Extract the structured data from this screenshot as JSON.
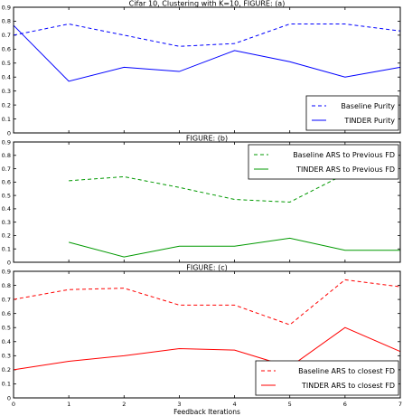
{
  "chart_data": [
    {
      "type": "line",
      "title": "Cifar 10, Clustering with K=10, FIGURE: (a)",
      "x": [
        0,
        1,
        2,
        3,
        4,
        5,
        6,
        7
      ],
      "ylim": [
        0,
        0.9
      ],
      "yticks": [
        "0",
        "0.1",
        "0.2",
        "0.3",
        "0.4",
        "0.5",
        "0.6",
        "0.7",
        "0.8",
        "0.9"
      ],
      "legend_position": "bottom-right",
      "series": [
        {
          "name": "Baseline Purity",
          "color": "#0000ff",
          "style": "dashed",
          "values": [
            0.7,
            0.78,
            0.7,
            0.62,
            0.64,
            0.78,
            0.78,
            0.73
          ]
        },
        {
          "name": "TINDER Purity",
          "color": "#0000ff",
          "style": "solid",
          "values": [
            0.77,
            0.37,
            0.47,
            0.44,
            0.59,
            0.51,
            0.4,
            0.47
          ]
        }
      ]
    },
    {
      "type": "line",
      "title": "FIGURE: (b)",
      "x": [
        1,
        2,
        3,
        4,
        5,
        6,
        7
      ],
      "ylim": [
        0,
        0.9
      ],
      "yticks": [
        "0",
        "0.1",
        "0.2",
        "0.3",
        "0.4",
        "0.5",
        "0.6",
        "0.7",
        "0.8",
        "0.9"
      ],
      "legend_position": "top-right",
      "series": [
        {
          "name": "Baseline ARS to Previous FD",
          "color": "#009900",
          "style": "dashed",
          "values": [
            0.61,
            0.64,
            0.56,
            0.47,
            0.45,
            0.66,
            0.66
          ]
        },
        {
          "name": "TINDER ARS to Previous FD",
          "color": "#009900",
          "style": "solid",
          "values": [
            0.15,
            0.04,
            0.12,
            0.12,
            0.18,
            0.09,
            0.09
          ]
        }
      ]
    },
    {
      "type": "line",
      "title": "FIGURE: (c)",
      "x": [
        0,
        1,
        2,
        3,
        4,
        5,
        6,
        7
      ],
      "ylim": [
        0,
        0.9
      ],
      "yticks": [
        "0",
        "0.1",
        "0.2",
        "0.3",
        "0.4",
        "0.5",
        "0.6",
        "0.7",
        "0.8",
        "0.9"
      ],
      "xticks": [
        "0",
        "1",
        "2",
        "3",
        "4",
        "5",
        "6",
        "7"
      ],
      "xlabel": "Feedback Iterations",
      "legend_position": "bottom-right",
      "series": [
        {
          "name": "Baseline ARS to closest FD",
          "color": "#ff0000",
          "style": "dashed",
          "values": [
            0.7,
            0.77,
            0.78,
            0.66,
            0.66,
            0.52,
            0.84,
            0.79
          ]
        },
        {
          "name": "TINDER ARS to closest FD",
          "color": "#ff0000",
          "style": "solid",
          "values": [
            0.2,
            0.26,
            0.3,
            0.35,
            0.34,
            0.22,
            0.5,
            0.33
          ]
        }
      ]
    }
  ]
}
